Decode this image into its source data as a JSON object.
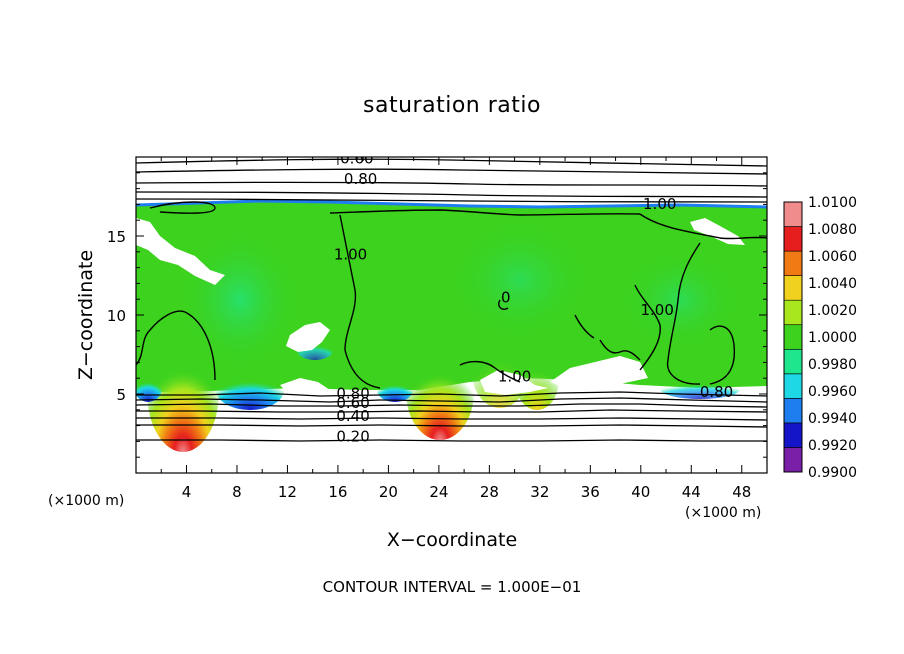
{
  "chart_data": {
    "type": "heatmap",
    "title": "saturation ratio",
    "xlabel": "X−coordinate",
    "ylabel": "Z−coordinate",
    "x_unit": "(×1000 m)",
    "z_unit": "(×1000 m)",
    "xlim": [
      0,
      50
    ],
    "ylim": [
      0,
      20
    ],
    "x_ticks": [
      4,
      8,
      12,
      16,
      20,
      24,
      28,
      32,
      36,
      40,
      44,
      48
    ],
    "x_tick_labels": [
      "4",
      "8",
      "12",
      "16",
      "20",
      "24",
      "28",
      "32",
      "36",
      "40",
      "44",
      "48"
    ],
    "y_ticks": [
      5,
      10,
      15
    ],
    "y_tick_labels": [
      "5",
      "10",
      "15"
    ],
    "colorbar": {
      "levels": [
        0.99,
        0.992,
        0.994,
        0.996,
        0.998,
        1.0,
        1.002,
        1.004,
        1.006,
        1.008,
        1.01
      ],
      "labels": [
        "0.9900",
        "0.9920",
        "0.9940",
        "0.9960",
        "0.9980",
        "1.0000",
        "1.0020",
        "1.0040",
        "1.0060",
        "1.0080",
        "1.0100"
      ],
      "colors": [
        "#7a1fa8",
        "#1414c8",
        "#1e7ef0",
        "#1ed8e6",
        "#1ee68c",
        "#3cd21e",
        "#a8e61e",
        "#f0d21e",
        "#f07a14",
        "#e61e1e",
        "#f08c8c"
      ]
    },
    "contour_labels": [
      {
        "text": "0.60",
        "x": 17.5,
        "y": 19.6
      },
      {
        "text": "0.80",
        "x": 17.8,
        "y": 18.3
      },
      {
        "text": "1.00",
        "x": 41.5,
        "y": 16.7
      },
      {
        "text": "1.00",
        "x": 17.0,
        "y": 13.5
      },
      {
        "text": "0",
        "x": 29.3,
        "y": 10.8
      },
      {
        "text": "1.00",
        "x": 41.3,
        "y": 10.0
      },
      {
        "text": "1.00",
        "x": 30.0,
        "y": 5.8
      },
      {
        "text": "0.80",
        "x": 46.0,
        "y": 4.8
      },
      {
        "text": "0.80",
        "x": 17.2,
        "y": 4.7
      },
      {
        "text": "0.60",
        "x": 17.2,
        "y": 4.1
      },
      {
        "text": "0.40",
        "x": 17.2,
        "y": 3.3
      },
      {
        "text": "0.20",
        "x": 17.2,
        "y": 2.0
      }
    ],
    "contour_interval_text": "CONTOUR INTERVAL = 1.000E−01"
  }
}
